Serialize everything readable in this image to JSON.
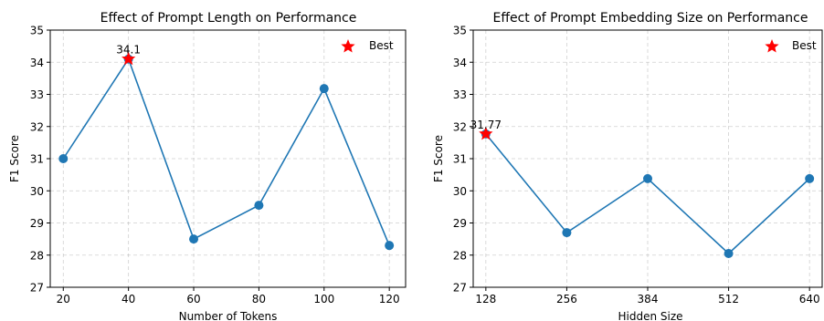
{
  "chart_data": [
    {
      "type": "line",
      "title": "Effect of Prompt Length on Performance",
      "xlabel": "Number of Tokens",
      "ylabel": "F1 Score",
      "x": [
        20,
        40,
        60,
        80,
        100,
        120
      ],
      "x_ticks": [
        "20",
        "40",
        "60",
        "80",
        "100",
        "120"
      ],
      "y": [
        31.0,
        34.1,
        28.5,
        29.55,
        33.18,
        28.3
      ],
      "y_ticks": [
        "27",
        "28",
        "29",
        "30",
        "31",
        "32",
        "33",
        "34",
        "35"
      ],
      "xlim": [
        16,
        125
      ],
      "ylim": [
        27,
        35
      ],
      "grid": true,
      "best": {
        "x": 40,
        "y": 34.1,
        "label": "34.1"
      },
      "legend": {
        "label": "Best",
        "placement": "top-right"
      },
      "line_color": "#1f77b4",
      "best_color": "#ff0000"
    },
    {
      "type": "line",
      "title": "Effect of Prompt Embedding Size on Performance",
      "xlabel": "Hidden Size",
      "ylabel": "F1 Score",
      "x": [
        128,
        256,
        384,
        512,
        640
      ],
      "x_ticks": [
        "128",
        "256",
        "384",
        "512",
        "640"
      ],
      "y": [
        31.77,
        28.7,
        30.38,
        28.05,
        30.38
      ],
      "y_ticks": [
        "27",
        "28",
        "29",
        "30",
        "31",
        "32",
        "33",
        "34",
        "35"
      ],
      "xlim": [
        108,
        660
      ],
      "ylim": [
        27,
        35
      ],
      "grid": true,
      "best": {
        "x": 128,
        "y": 31.77,
        "label": "31.77"
      },
      "legend": {
        "label": "Best",
        "placement": "top-right"
      },
      "line_color": "#1f77b4",
      "best_color": "#ff0000"
    }
  ]
}
